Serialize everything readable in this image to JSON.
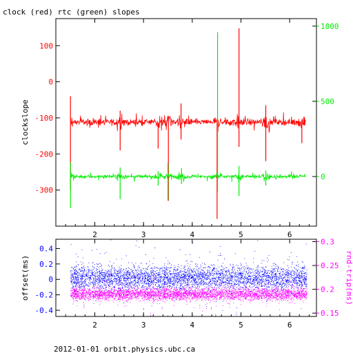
{
  "title": "clock (red) rtc (green) slopes",
  "footer": "2012-01-01 orbit.physics.ubc.ca",
  "colors": {
    "red": "#ff0000",
    "green": "#00ee00",
    "blue": "#0000ff",
    "magenta": "#ff00ff",
    "axis": "#000000"
  },
  "chart_data": [
    {
      "type": "line",
      "title": "clock (red) rtc (green) slopes",
      "xlim": [
        1.2,
        6.55
      ],
      "xticks": [
        2,
        3,
        4,
        5,
        6
      ],
      "ylabel": "clockslope",
      "ylim": [
        -400,
        175
      ],
      "yticks": [
        100,
        0,
        -100,
        -200,
        -300
      ],
      "y2lim": [
        -330,
        1050
      ],
      "y2ticks": [
        1000,
        500,
        0
      ],
      "grid": false,
      "series": [
        {
          "axis": "left",
          "color": "#ff0000",
          "baseline": -112,
          "noise": 6,
          "x_range": [
            1.5,
            6.33
          ],
          "spikes": [
            {
              "x": 1.5,
              "min": -300,
              "max": -40
            },
            {
              "x": 2.52,
              "min": -190,
              "max": -80
            },
            {
              "x": 3.3,
              "min": -185,
              "max": -115
            },
            {
              "x": 3.51,
              "min": -330,
              "max": -95
            },
            {
              "x": 3.77,
              "min": -160,
              "max": -60
            },
            {
              "x": 4.51,
              "min": -380,
              "max": -115
            },
            {
              "x": 4.96,
              "min": -180,
              "max": 148
            },
            {
              "x": 5.51,
              "min": -220,
              "max": -65
            },
            {
              "x": 6.25,
              "min": -170,
              "max": -105
            }
          ]
        },
        {
          "axis": "right",
          "color": "#00ee00",
          "baseline": 0,
          "noise": 8,
          "x_range": [
            1.5,
            6.33
          ],
          "spikes": [
            {
              "x": 1.5,
              "min": -210,
              "max": 95
            },
            {
              "x": 2.52,
              "min": -150,
              "max": 60
            },
            {
              "x": 3.3,
              "min": -60,
              "max": 35
            },
            {
              "x": 3.5,
              "min": -160,
              "max": 90
            },
            {
              "x": 3.78,
              "min": -50,
              "max": 55
            },
            {
              "x": 4.52,
              "min": -100,
              "max": 960
            },
            {
              "x": 4.96,
              "min": -130,
              "max": 70
            },
            {
              "x": 5.51,
              "min": -60,
              "max": 40
            }
          ]
        }
      ]
    },
    {
      "type": "scatter",
      "xlim": [
        1.2,
        6.55
      ],
      "xticks": [
        2,
        3,
        4,
        5,
        6
      ],
      "ylabel": "offset(ms)",
      "ylim": [
        -0.48,
        0.52
      ],
      "yticks": [
        0.4,
        0.2,
        0,
        -0.2,
        -0.4
      ],
      "y2label": "rnd-trip(ms)",
      "y2lim": [
        0.143,
        0.305
      ],
      "y2ticks": [
        0.3,
        0.25,
        0.2,
        0.15
      ],
      "grid": false,
      "series": [
        {
          "axis": "left",
          "color": "#0000ff",
          "center": 0.02,
          "spread": 0.11,
          "x_range": [
            1.5,
            6.35
          ]
        },
        {
          "axis": "right",
          "color": "#ff00ff",
          "center": 0.19,
          "spread": 0.009,
          "x_range": [
            1.5,
            6.35
          ]
        }
      ]
    }
  ]
}
